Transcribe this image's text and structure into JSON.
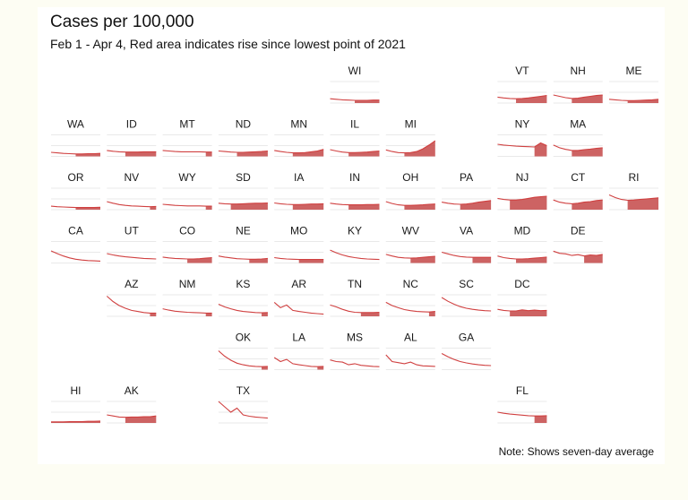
{
  "header": {
    "title": "Cases per 100,000",
    "subtitle": "Feb 1 - Apr 4, Red area indicates rise since lowest point of 2021"
  },
  "footer": {
    "note": "Note: Shows seven-day average"
  },
  "colors": {
    "background": "#fdfdf3",
    "panel": "#ffffff",
    "line": "#d04040",
    "area": "#c44848",
    "gridline": "#e2e2e2"
  },
  "chart_data": {
    "type": "line",
    "layout": "tile-grid-map",
    "grid": true,
    "cells": [
      {
        "state": "WI",
        "row": 0,
        "col": 5,
        "values": [
          16,
          14,
          12,
          11,
          10,
          10,
          10,
          11,
          11
        ]
      },
      {
        "state": "VT",
        "row": 0,
        "col": 8,
        "values": [
          22,
          19,
          17,
          16,
          17,
          19,
          22,
          25,
          28
        ]
      },
      {
        "state": "NH",
        "row": 0,
        "col": 9,
        "values": [
          30,
          25,
          20,
          17,
          18,
          22,
          25,
          28,
          30
        ]
      },
      {
        "state": "ME",
        "row": 0,
        "col": 10,
        "values": [
          14,
          12,
          10,
          9,
          9,
          10,
          11,
          12,
          14
        ]
      },
      {
        "state": "WA",
        "row": 1,
        "col": 0,
        "values": [
          15,
          13,
          11,
          10,
          9,
          9,
          10,
          10,
          11
        ]
      },
      {
        "state": "ID",
        "row": 1,
        "col": 1,
        "values": [
          22,
          19,
          17,
          16,
          16,
          16,
          17,
          17,
          17
        ]
      },
      {
        "state": "MT",
        "row": 1,
        "col": 2,
        "values": [
          22,
          20,
          18,
          17,
          17,
          17,
          17,
          16,
          16
        ]
      },
      {
        "state": "ND",
        "row": 1,
        "col": 3,
        "values": [
          20,
          18,
          16,
          15,
          15,
          16,
          17,
          18,
          20
        ]
      },
      {
        "state": "MN",
        "row": 1,
        "col": 4,
        "values": [
          22,
          18,
          15,
          13,
          13,
          14,
          17,
          20,
          26
        ]
      },
      {
        "state": "IL",
        "row": 1,
        "col": 5,
        "values": [
          25,
          20,
          16,
          14,
          14,
          15,
          16,
          18,
          20
        ]
      },
      {
        "state": "MI",
        "row": 1,
        "col": 6,
        "values": [
          24,
          18,
          14,
          13,
          14,
          18,
          28,
          42,
          58
        ]
      },
      {
        "state": "NY",
        "row": 1,
        "col": 8,
        "values": [
          45,
          42,
          40,
          38,
          37,
          36,
          35,
          50,
          40
        ]
      },
      {
        "state": "MA",
        "row": 1,
        "col": 9,
        "values": [
          42,
          32,
          26,
          22,
          22,
          25,
          27,
          30,
          32
        ]
      },
      {
        "state": "OR",
        "row": 2,
        "col": 0,
        "values": [
          13,
          11,
          10,
          9,
          8,
          8,
          8,
          8,
          9
        ]
      },
      {
        "state": "NV",
        "row": 2,
        "col": 1,
        "values": [
          30,
          24,
          19,
          16,
          14,
          13,
          12,
          11,
          12
        ]
      },
      {
        "state": "WY",
        "row": 2,
        "col": 2,
        "values": [
          20,
          18,
          16,
          15,
          14,
          14,
          14,
          13,
          13
        ]
      },
      {
        "state": "SD",
        "row": 2,
        "col": 3,
        "values": [
          24,
          22,
          21,
          21,
          22,
          23,
          24,
          24,
          25
        ]
      },
      {
        "state": "IA",
        "row": 2,
        "col": 4,
        "values": [
          25,
          22,
          20,
          19,
          19,
          20,
          21,
          21,
          22
        ]
      },
      {
        "state": "IN",
        "row": 2,
        "col": 5,
        "values": [
          24,
          21,
          19,
          18,
          18,
          18,
          19,
          19,
          20
        ]
      },
      {
        "state": "OH",
        "row": 2,
        "col": 6,
        "values": [
          30,
          23,
          18,
          16,
          16,
          17,
          18,
          20,
          21
        ]
      },
      {
        "state": "PA",
        "row": 2,
        "col": 7,
        "values": [
          28,
          24,
          21,
          20,
          21,
          24,
          28,
          31,
          34
        ]
      },
      {
        "state": "NJ",
        "row": 2,
        "col": 8,
        "values": [
          42,
          38,
          36,
          36,
          38,
          42,
          46,
          48,
          50
        ]
      },
      {
        "state": "CT",
        "row": 2,
        "col": 9,
        "values": [
          36,
          28,
          24,
          22,
          24,
          28,
          30,
          34,
          36
        ]
      },
      {
        "state": "RI",
        "row": 2,
        "col": 10,
        "values": [
          55,
          45,
          38,
          35,
          36,
          38,
          40,
          42,
          44
        ]
      },
      {
        "state": "CA",
        "row": 3,
        "col": 0,
        "values": [
          45,
          35,
          26,
          19,
          14,
          11,
          9,
          8,
          7
        ]
      },
      {
        "state": "UT",
        "row": 3,
        "col": 1,
        "values": [
          35,
          30,
          26,
          23,
          21,
          19,
          17,
          16,
          15
        ]
      },
      {
        "state": "CO",
        "row": 3,
        "col": 2,
        "values": [
          22,
          19,
          17,
          16,
          15,
          15,
          16,
          18,
          20
        ]
      },
      {
        "state": "NE",
        "row": 3,
        "col": 3,
        "values": [
          26,
          22,
          19,
          16,
          15,
          14,
          14,
          15,
          17
        ]
      },
      {
        "state": "MO",
        "row": 3,
        "col": 4,
        "values": [
          20,
          17,
          15,
          14,
          13,
          13,
          13,
          13,
          13
        ]
      },
      {
        "state": "KY",
        "row": 3,
        "col": 5,
        "values": [
          48,
          38,
          30,
          24,
          20,
          17,
          15,
          14,
          13
        ]
      },
      {
        "state": "WV",
        "row": 3,
        "col": 6,
        "values": [
          32,
          26,
          21,
          19,
          18,
          19,
          21,
          23,
          25
        ]
      },
      {
        "state": "VA",
        "row": 3,
        "col": 7,
        "values": [
          40,
          34,
          28,
          24,
          22,
          21,
          21,
          21,
          21
        ]
      },
      {
        "state": "MD",
        "row": 3,
        "col": 8,
        "values": [
          26,
          20,
          17,
          15,
          15,
          16,
          18,
          20,
          22
        ]
      },
      {
        "state": "DE",
        "row": 3,
        "col": 9,
        "values": [
          44,
          36,
          34,
          28,
          31,
          26,
          30,
          28,
          32
        ]
      },
      {
        "state": "AZ",
        "row": 4,
        "col": 1,
        "values": [
          75,
          55,
          40,
          30,
          22,
          18,
          14,
          12,
          12
        ]
      },
      {
        "state": "NM",
        "row": 4,
        "col": 2,
        "values": [
          28,
          23,
          19,
          17,
          15,
          14,
          13,
          12,
          12
        ]
      },
      {
        "state": "KS",
        "row": 4,
        "col": 3,
        "values": [
          45,
          35,
          28,
          22,
          18,
          16,
          14,
          13,
          14
        ]
      },
      {
        "state": "AR",
        "row": 4,
        "col": 4,
        "values": [
          52,
          32,
          42,
          22,
          18,
          15,
          12,
          10,
          8
        ]
      },
      {
        "state": "TN",
        "row": 4,
        "col": 5,
        "values": [
          42,
          35,
          26,
          19,
          15,
          14,
          14,
          14,
          15
        ]
      },
      {
        "state": "NC",
        "row": 4,
        "col": 6,
        "values": [
          52,
          40,
          32,
          25,
          21,
          18,
          17,
          16,
          18
        ]
      },
      {
        "state": "SC",
        "row": 4,
        "col": 7,
        "values": [
          70,
          56,
          45,
          36,
          30,
          26,
          23,
          21,
          20
        ]
      },
      {
        "state": "DC",
        "row": 4,
        "col": 8,
        "values": [
          26,
          22,
          20,
          20,
          24,
          21,
          23,
          21,
          22
        ]
      },
      {
        "state": "OK",
        "row": 5,
        "col": 3,
        "values": [
          70,
          50,
          35,
          24,
          18,
          14,
          12,
          11,
          12
        ]
      },
      {
        "state": "LA",
        "row": 5,
        "col": 4,
        "values": [
          45,
          30,
          38,
          22,
          18,
          15,
          12,
          11,
          12
        ]
      },
      {
        "state": "MS",
        "row": 5,
        "col": 5,
        "values": [
          36,
          30,
          28,
          18,
          22,
          16,
          14,
          12,
          11
        ]
      },
      {
        "state": "AL",
        "row": 5,
        "col": 6,
        "values": [
          55,
          30,
          26,
          22,
          28,
          18,
          14,
          13,
          12
        ]
      },
      {
        "state": "GA",
        "row": 5,
        "col": 7,
        "values": [
          60,
          48,
          38,
          30,
          25,
          21,
          18,
          16,
          15
        ]
      },
      {
        "state": "HI",
        "row": 6,
        "col": 0,
        "values": [
          4,
          4,
          4,
          5,
          5,
          5,
          6,
          6,
          7
        ]
      },
      {
        "state": "AK",
        "row": 6,
        "col": 1,
        "values": [
          30,
          26,
          22,
          21,
          22,
          22,
          23,
          23,
          26
        ]
      },
      {
        "state": "TX",
        "row": 6,
        "col": 3,
        "values": [
          80,
          60,
          40,
          55,
          30,
          25,
          22,
          20,
          18
        ]
      },
      {
        "state": "FL",
        "row": 6,
        "col": 8,
        "values": [
          40,
          36,
          33,
          31,
          29,
          27,
          26,
          26,
          27
        ]
      }
    ],
    "ylim": [
      0,
      80
    ]
  }
}
